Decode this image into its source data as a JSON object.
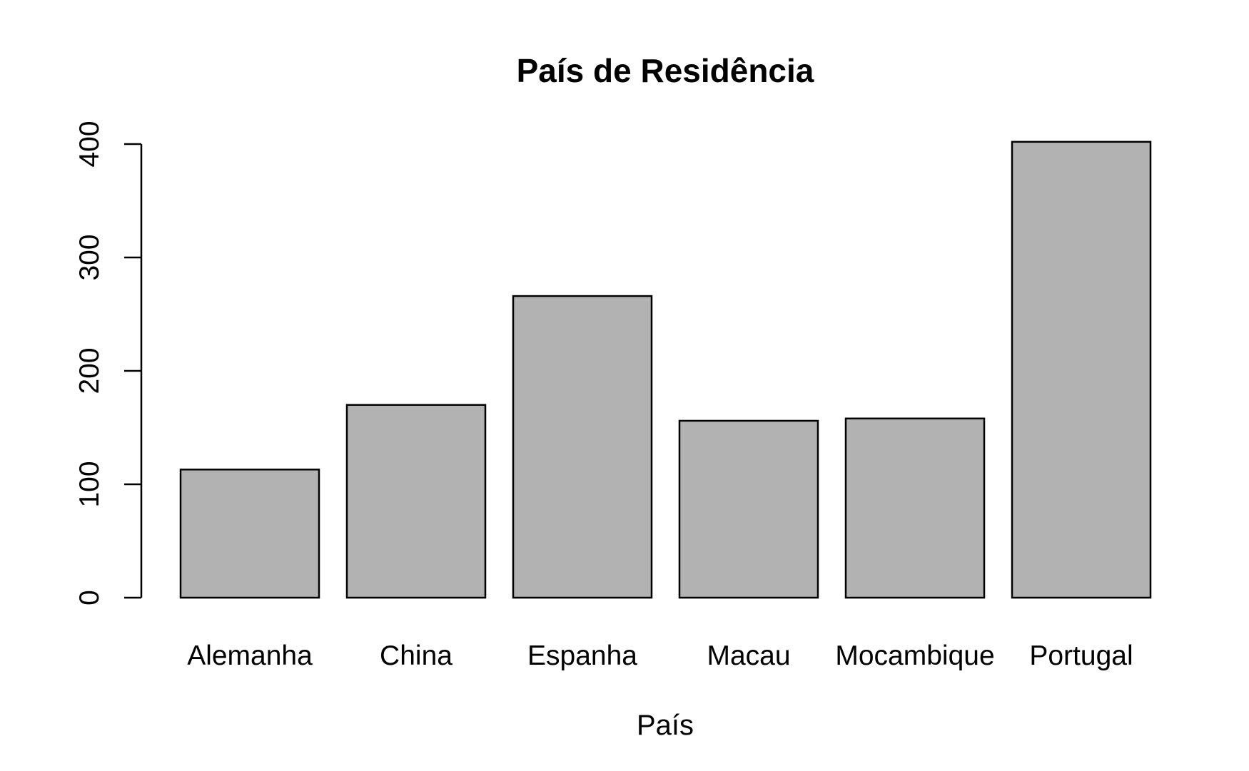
{
  "chart_data": {
    "type": "bar",
    "title": "País de Residência",
    "xlabel": "País",
    "ylabel": "",
    "categories": [
      "Alemanha",
      "China",
      "Espanha",
      "Macau",
      "Mocambique",
      "Portugal"
    ],
    "values": [
      113,
      170,
      266,
      156,
      158,
      402
    ],
    "ylim": [
      0,
      400
    ],
    "yticks": [
      0,
      100,
      200,
      300,
      400
    ],
    "ytick_labels": [
      "0",
      "100",
      "200",
      "300",
      "400"
    ],
    "grid": false,
    "legend": "none",
    "colors": {
      "bar_fill": "#b2b2b2",
      "bar_stroke": "#000000",
      "background": "#ffffff"
    }
  }
}
